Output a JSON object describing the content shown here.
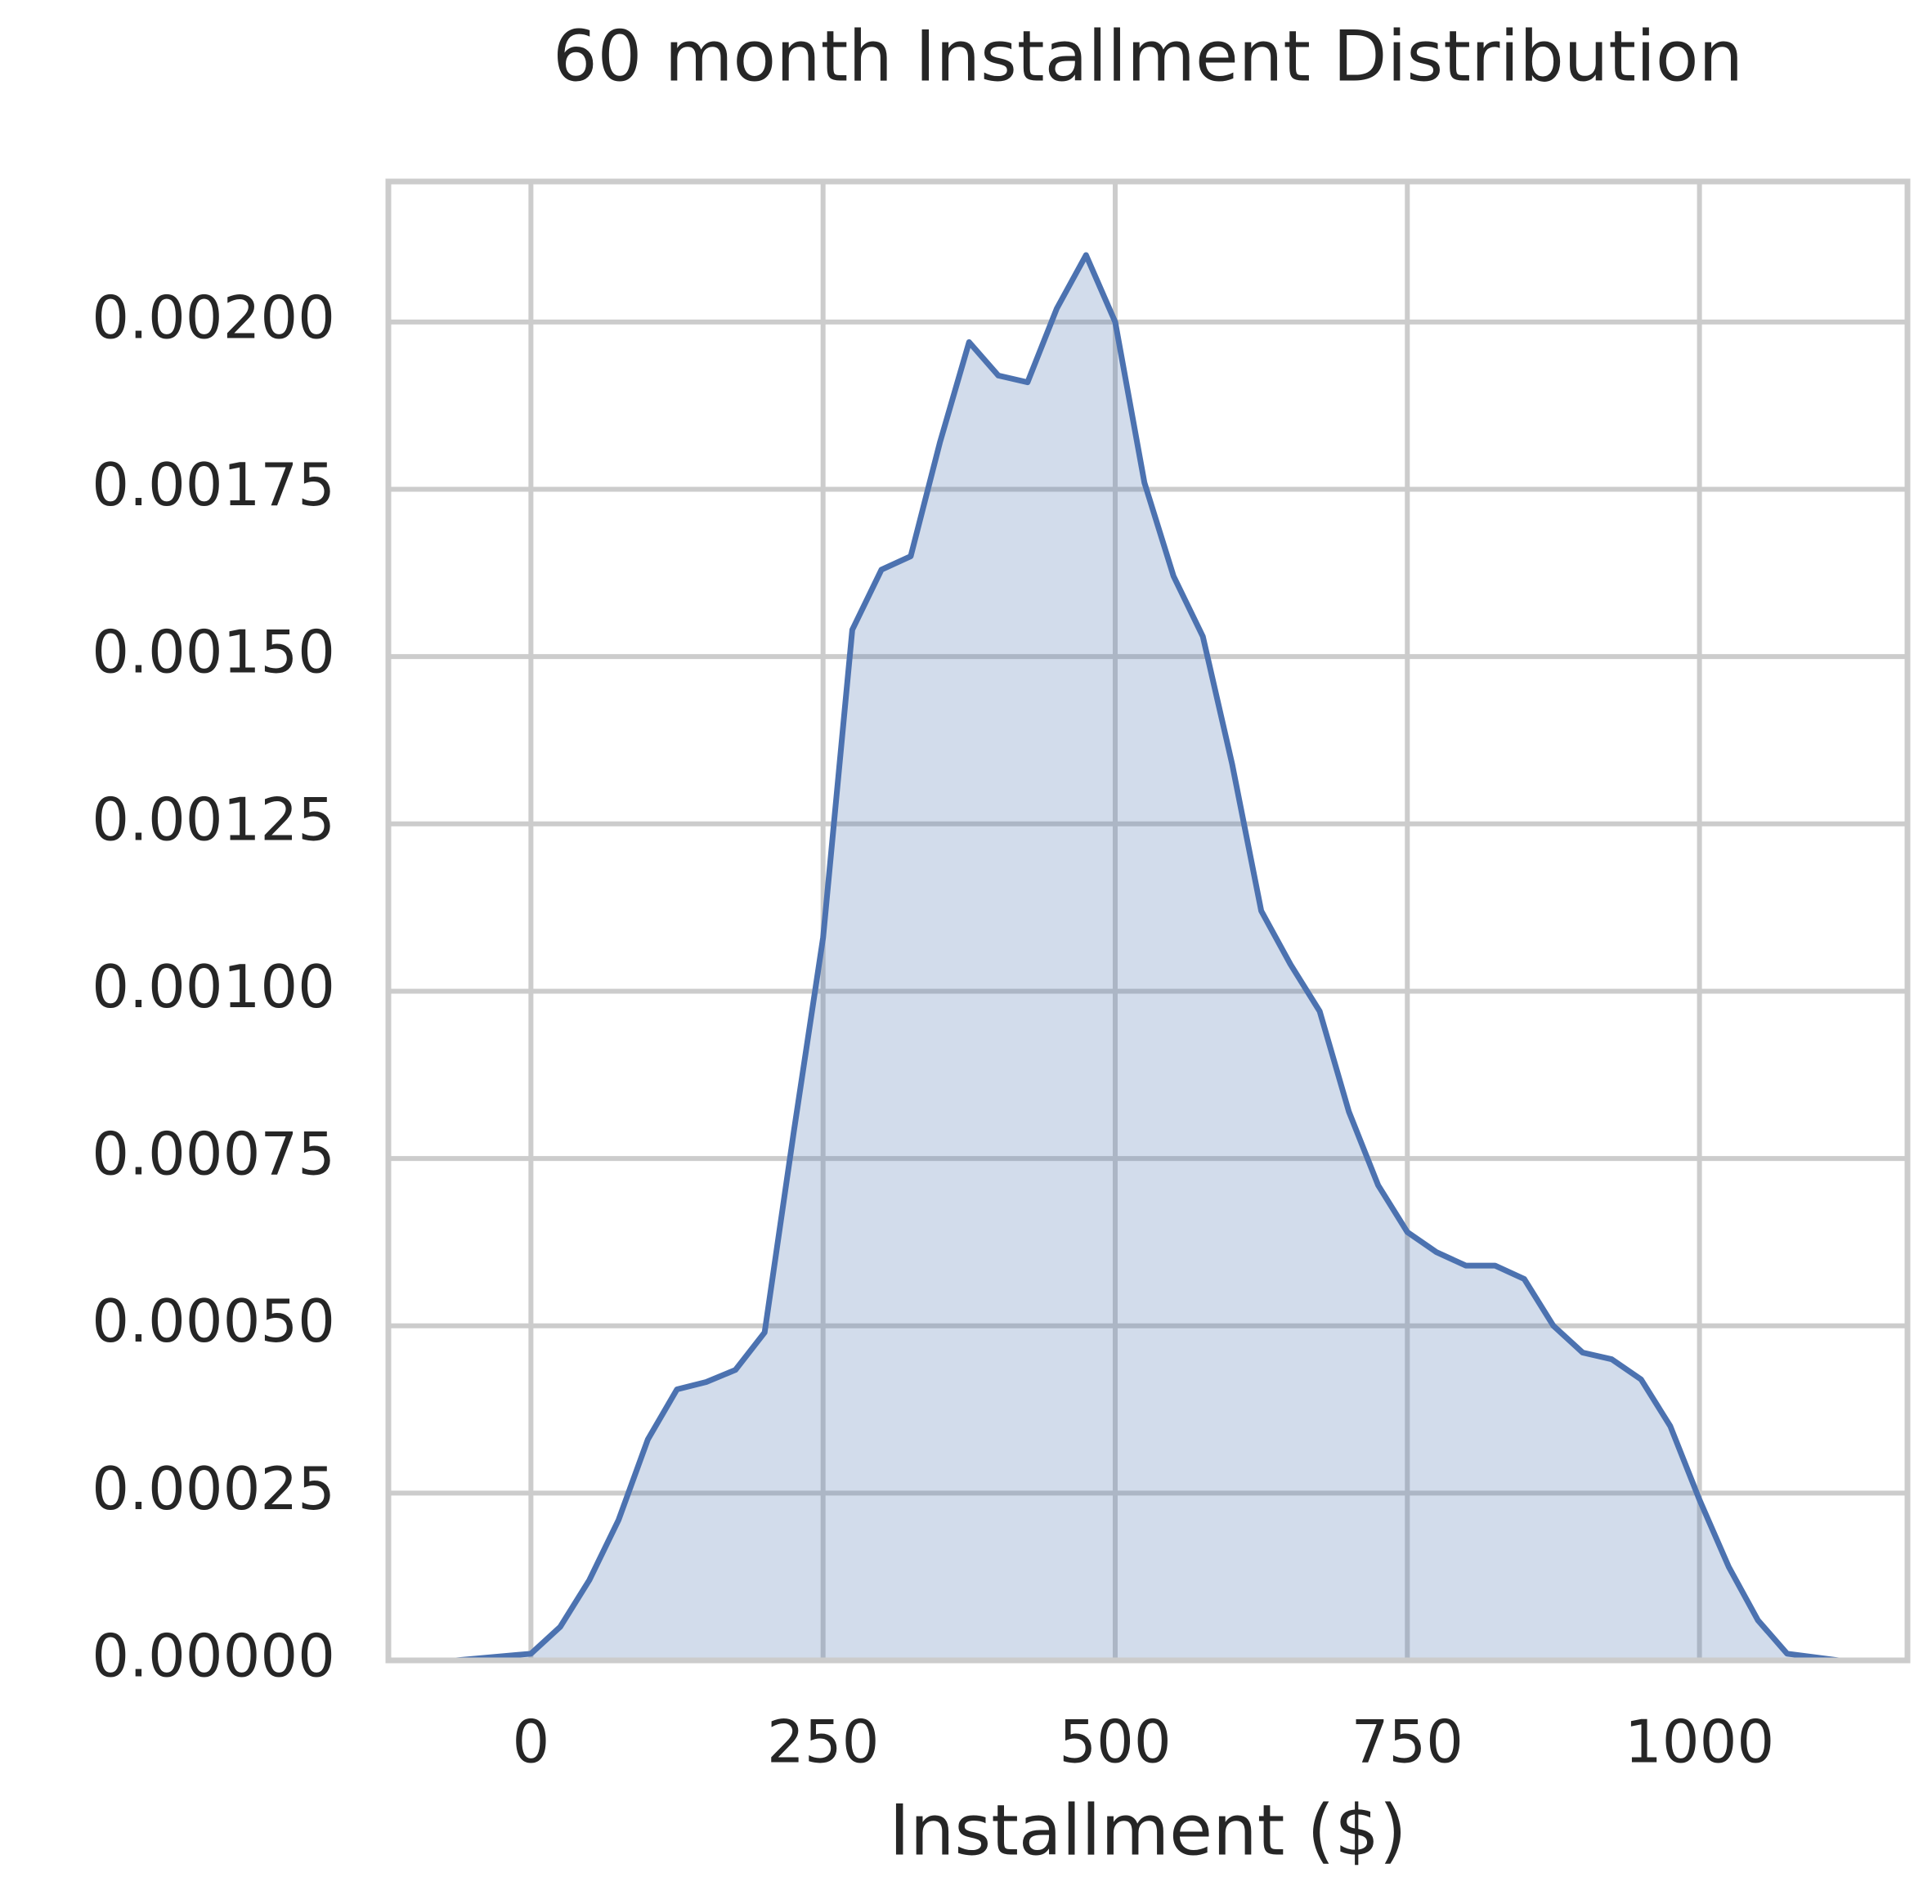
{
  "chart_data": {
    "type": "kde",
    "title": "60 month Installment Distribution",
    "xlabel": "Installment ($)",
    "x": [
      -64,
      0,
      25,
      50,
      75,
      100,
      125,
      150,
      175,
      200,
      225,
      250,
      275,
      300,
      325,
      350,
      375,
      400,
      425,
      450,
      475,
      500,
      525,
      550,
      575,
      600,
      625,
      650,
      675,
      700,
      725,
      750,
      775,
      800,
      825,
      850,
      875,
      900,
      925,
      950,
      975,
      1000,
      1025,
      1050,
      1075,
      1119
    ],
    "series": [
      {
        "color": "#4c72b0",
        "values": [
          0,
          1e-05,
          5e-05,
          0.00012,
          0.00021,
          0.00033,
          0.000405,
          0.000416,
          0.000434,
          0.00049,
          0.00079,
          0.00108,
          0.00154,
          0.00163,
          0.00165,
          0.00182,
          0.00197,
          0.00192,
          0.00191,
          0.00202,
          0.0021,
          0.002,
          0.00176,
          0.00162,
          0.00153,
          0.00134,
          0.00112,
          0.00104,
          0.00097,
          0.00082,
          0.00071,
          0.00064,
          0.00061,
          0.00059,
          0.00059,
          0.00057,
          0.0005,
          0.00046,
          0.00045,
          0.00042,
          0.00035,
          0.00024,
          0.00014,
          6e-05,
          1e-05,
          0
        ]
      }
    ],
    "xlim": [
      -122,
      1178
    ],
    "ylim": [
      0,
      0.00221
    ],
    "xticks": [
      0,
      250,
      500,
      750,
      1000
    ],
    "yticks": [
      {
        "value": 0,
        "label": "0.00000"
      },
      {
        "value": 0.00025,
        "label": "0.00025"
      },
      {
        "value": 0.0005,
        "label": "0.00050"
      },
      {
        "value": 0.00075,
        "label": "0.00075"
      },
      {
        "value": 0.001,
        "label": "0.00100"
      },
      {
        "value": 0.00125,
        "label": "0.00125"
      },
      {
        "value": 0.0015,
        "label": "0.00150"
      },
      {
        "value": 0.00175,
        "label": "0.00175"
      },
      {
        "value": 0.002,
        "label": "0.00200"
      }
    ],
    "grid": true
  }
}
